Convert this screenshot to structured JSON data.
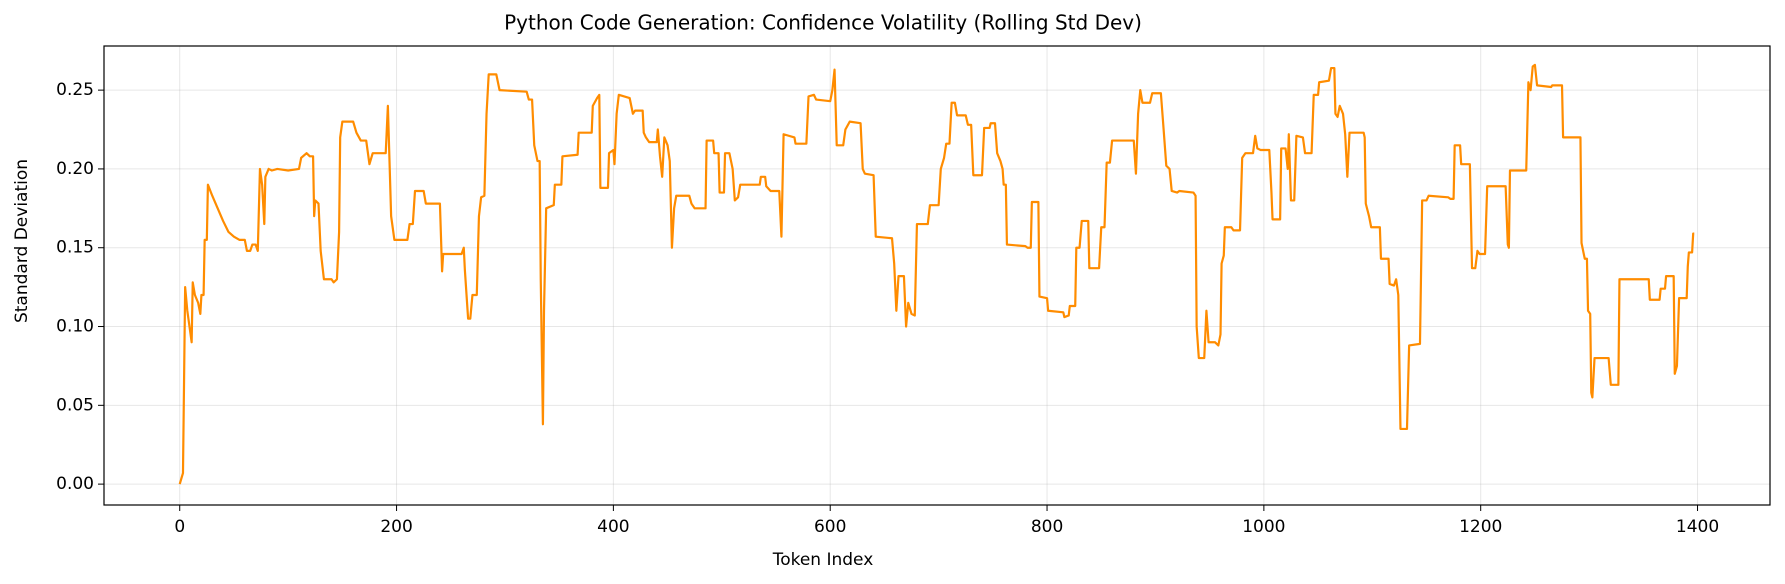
{
  "chart_data": {
    "type": "line",
    "title": "Python Code Generation: Confidence Volatility (Rolling Std Dev)",
    "x_label": "Token Index",
    "y_label": "Standard Deviation",
    "xlim": [
      -69.85,
      1466.85
    ],
    "ylim": [
      -0.01325,
      0.278
    ],
    "xticks": [
      0,
      200,
      400,
      600,
      800,
      1000,
      1200,
      1400
    ],
    "yticks": [
      {
        "value": 0,
        "label": "0.00"
      },
      {
        "value": 0.05,
        "label": "0.05"
      },
      {
        "value": 0.1,
        "label": "0.10"
      },
      {
        "value": 0.15,
        "label": "0.15"
      },
      {
        "value": 0.2,
        "label": "0.20"
      },
      {
        "value": 0.25,
        "label": "0.25"
      }
    ],
    "grid": true,
    "x": [
      0,
      3,
      5,
      7,
      10,
      11,
      12,
      14,
      17,
      19,
      20,
      22,
      23,
      25,
      26,
      30,
      35,
      40,
      45,
      50,
      55,
      60,
      62,
      65,
      67,
      70,
      72,
      74,
      76,
      78,
      79,
      82,
      85,
      90,
      100,
      110,
      112,
      117,
      120,
      123,
      124,
      125,
      128,
      130,
      133,
      140,
      142,
      145,
      147,
      148,
      150,
      160,
      163,
      167,
      172,
      175,
      178,
      190,
      192,
      195,
      198,
      210,
      212,
      215,
      217,
      225,
      227,
      240,
      242,
      243,
      260,
      262,
      263,
      266,
      268,
      270,
      274,
      276,
      278,
      281,
      283,
      285,
      292,
      295,
      320,
      322,
      325,
      327,
      330,
      332,
      333,
      335,
      336,
      338,
      345,
      346,
      352,
      353,
      367,
      368,
      380,
      381,
      385,
      387,
      388,
      395,
      396,
      400,
      401,
      403,
      405,
      415,
      418,
      420,
      427,
      428,
      430,
      433,
      440,
      441,
      443,
      445,
      447,
      450,
      452,
      454,
      456,
      458,
      470,
      472,
      475,
      485,
      486,
      492,
      493,
      497,
      498,
      502,
      503,
      507,
      510,
      512,
      515,
      517,
      535,
      536,
      540,
      541,
      545,
      553,
      555,
      557,
      567,
      568,
      578,
      580,
      585,
      587,
      600,
      602,
      604,
      606,
      612,
      614,
      618,
      628,
      630,
      632,
      640,
      642,
      657,
      659,
      661,
      663,
      668,
      670,
      672,
      675,
      678,
      680,
      690,
      692,
      700,
      702,
      705,
      707,
      710,
      712,
      715,
      717,
      725,
      727,
      730,
      732,
      740,
      742,
      747,
      748,
      752,
      754,
      757,
      759,
      760,
      762,
      763,
      780,
      782,
      785,
      786,
      792,
      793,
      800,
      801,
      815,
      816,
      820,
      821,
      826,
      827,
      830,
      832,
      838,
      839,
      848,
      850,
      853,
      855,
      858,
      860,
      880,
      882,
      884,
      886,
      888,
      895,
      897,
      905,
      907,
      910,
      913,
      915,
      920,
      922,
      935,
      937,
      938,
      940,
      945,
      947,
      949,
      955,
      958,
      960,
      961,
      963,
      964,
      970,
      972,
      978,
      980,
      983,
      990,
      992,
      994,
      997,
      1005,
      1007,
      1008,
      1015,
      1016,
      1020,
      1022,
      1023,
      1025,
      1028,
      1030,
      1036,
      1038,
      1044,
      1046,
      1050,
      1051,
      1060,
      1062,
      1065,
      1066,
      1068,
      1070,
      1073,
      1075,
      1077,
      1079,
      1092,
      1093,
      1094,
      1097,
      1099,
      1107,
      1108,
      1115,
      1116,
      1120,
      1122,
      1124,
      1126,
      1132,
      1134,
      1144,
      1146,
      1150,
      1152,
      1170,
      1172,
      1175,
      1176,
      1181,
      1182,
      1190,
      1192,
      1195,
      1197,
      1199,
      1204,
      1206,
      1223,
      1225,
      1226,
      1227,
      1242,
      1244,
      1246,
      1248,
      1250,
      1252,
      1265,
      1266,
      1275,
      1276,
      1292,
      1293,
      1296,
      1298,
      1299,
      1301,
      1302,
      1303,
      1305,
      1318,
      1320,
      1327,
      1328,
      1355,
      1356,
      1365,
      1366,
      1370,
      1371,
      1378,
      1379,
      1381,
      1383,
      1390,
      1391,
      1392,
      1395,
      1396,
      1397
    ],
    "series": [
      {
        "name": "Rolling Std Dev",
        "color": "#ff8c00",
        "values": [
          0,
          0.007,
          0.125,
          0.11,
          0.095,
          0.09,
          0.128,
          0.12,
          0.115,
          0.108,
          0.12,
          0.12,
          0.155,
          0.155,
          0.19,
          0.183,
          0.175,
          0.167,
          0.16,
          0.157,
          0.155,
          0.155,
          0.148,
          0.148,
          0.152,
          0.152,
          0.148,
          0.2,
          0.19,
          0.165,
          0.195,
          0.2,
          0.199,
          0.2,
          0.199,
          0.2,
          0.207,
          0.21,
          0.208,
          0.208,
          0.17,
          0.18,
          0.178,
          0.148,
          0.13,
          0.13,
          0.128,
          0.13,
          0.16,
          0.22,
          0.23,
          0.23,
          0.223,
          0.218,
          0.218,
          0.203,
          0.21,
          0.21,
          0.24,
          0.17,
          0.155,
          0.155,
          0.165,
          0.165,
          0.186,
          0.186,
          0.178,
          0.178,
          0.135,
          0.146,
          0.146,
          0.15,
          0.136,
          0.105,
          0.105,
          0.12,
          0.12,
          0.17,
          0.182,
          0.183,
          0.235,
          0.26,
          0.26,
          0.25,
          0.249,
          0.244,
          0.244,
          0.215,
          0.205,
          0.205,
          0.13,
          0.038,
          0.11,
          0.175,
          0.177,
          0.19,
          0.19,
          0.208,
          0.209,
          0.223,
          0.223,
          0.24,
          0.245,
          0.247,
          0.188,
          0.188,
          0.21,
          0.212,
          0.203,
          0.235,
          0.247,
          0.245,
          0.235,
          0.237,
          0.237,
          0.223,
          0.22,
          0.217,
          0.217,
          0.225,
          0.208,
          0.195,
          0.22,
          0.215,
          0.205,
          0.15,
          0.175,
          0.183,
          0.183,
          0.178,
          0.175,
          0.175,
          0.218,
          0.218,
          0.21,
          0.21,
          0.185,
          0.185,
          0.21,
          0.21,
          0.2,
          0.18,
          0.182,
          0.19,
          0.19,
          0.195,
          0.195,
          0.189,
          0.186,
          0.186,
          0.157,
          0.222,
          0.22,
          0.216,
          0.216,
          0.246,
          0.247,
          0.244,
          0.243,
          0.25,
          0.263,
          0.215,
          0.215,
          0.225,
          0.23,
          0.229,
          0.2,
          0.197,
          0.196,
          0.157,
          0.156,
          0.14,
          0.11,
          0.132,
          0.132,
          0.1,
          0.115,
          0.108,
          0.107,
          0.165,
          0.165,
          0.177,
          0.177,
          0.2,
          0.207,
          0.216,
          0.216,
          0.242,
          0.242,
          0.234,
          0.234,
          0.228,
          0.228,
          0.196,
          0.196,
          0.226,
          0.226,
          0.229,
          0.229,
          0.21,
          0.205,
          0.2,
          0.19,
          0.19,
          0.152,
          0.151,
          0.15,
          0.15,
          0.179,
          0.179,
          0.119,
          0.118,
          0.11,
          0.109,
          0.106,
          0.107,
          0.113,
          0.113,
          0.15,
          0.15,
          0.167,
          0.167,
          0.137,
          0.137,
          0.163,
          0.163,
          0.204,
          0.204,
          0.218,
          0.218,
          0.197,
          0.235,
          0.25,
          0.242,
          0.242,
          0.248,
          0.248,
          0.23,
          0.202,
          0.2,
          0.186,
          0.185,
          0.186,
          0.185,
          0.183,
          0.1,
          0.08,
          0.08,
          0.11,
          0.09,
          0.09,
          0.088,
          0.095,
          0.14,
          0.145,
          0.163,
          0.163,
          0.161,
          0.161,
          0.207,
          0.21,
          0.21,
          0.221,
          0.213,
          0.212,
          0.212,
          0.185,
          0.168,
          0.168,
          0.213,
          0.213,
          0.2,
          0.222,
          0.18,
          0.18,
          0.221,
          0.22,
          0.21,
          0.21,
          0.247,
          0.247,
          0.255,
          0.256,
          0.264,
          0.264,
          0.235,
          0.233,
          0.24,
          0.235,
          0.222,
          0.195,
          0.223,
          0.223,
          0.22,
          0.178,
          0.17,
          0.163,
          0.163,
          0.143,
          0.143,
          0.127,
          0.126,
          0.13,
          0.12,
          0.035,
          0.035,
          0.088,
          0.089,
          0.18,
          0.18,
          0.183,
          0.182,
          0.181,
          0.181,
          0.215,
          0.215,
          0.203,
          0.203,
          0.137,
          0.137,
          0.148,
          0.146,
          0.146,
          0.189,
          0.189,
          0.152,
          0.15,
          0.199,
          0.199,
          0.255,
          0.25,
          0.265,
          0.266,
          0.253,
          0.252,
          0.253,
          0.253,
          0.22,
          0.22,
          0.153,
          0.143,
          0.143,
          0.11,
          0.108,
          0.058,
          0.055,
          0.08,
          0.08,
          0.063,
          0.063,
          0.13,
          0.13,
          0.117,
          0.117,
          0.124,
          0.124,
          0.132,
          0.132,
          0.07,
          0.075,
          0.118,
          0.118,
          0.138,
          0.147,
          0.147,
          0.159,
          0.159
        ]
      }
    ]
  }
}
